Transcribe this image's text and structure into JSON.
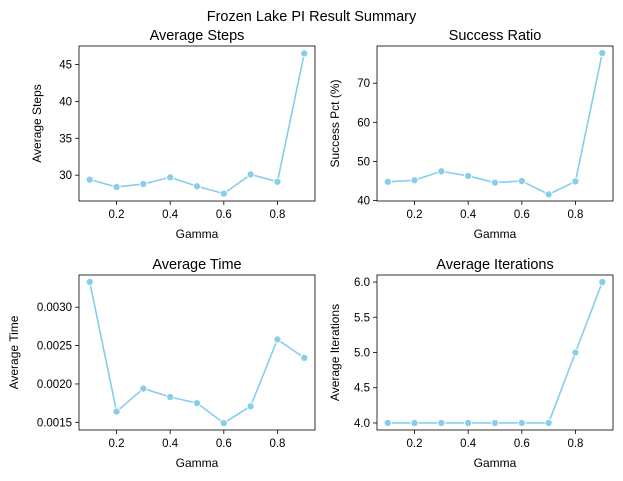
{
  "figure": {
    "suptitle": "Frozen Lake PI Result Summary"
  },
  "chart_data": [
    {
      "type": "line",
      "title": "Average Steps",
      "xlabel": "Gamma",
      "ylabel": "Average Steps",
      "x": [
        0.1,
        0.2,
        0.3,
        0.4,
        0.5,
        0.6,
        0.7,
        0.8,
        0.9
      ],
      "values": [
        29.4,
        28.4,
        28.8,
        29.7,
        28.5,
        27.5,
        30.1,
        29.1,
        46.5
      ],
      "xlim": [
        0.06,
        0.94
      ],
      "ylim": [
        26.5,
        47.5
      ],
      "xticks": [
        0.2,
        0.4,
        0.6,
        0.8
      ],
      "xtick_labels": [
        "0.2",
        "0.4",
        "0.6",
        "0.8"
      ],
      "yticks": [
        30,
        35,
        40,
        45
      ],
      "ytick_labels": [
        "30",
        "35",
        "40",
        "45"
      ],
      "color": "#87ceeb",
      "grid": false
    },
    {
      "type": "line",
      "title": "Success Ratio",
      "xlabel": "Gamma",
      "ylabel": "Success Pct (%)",
      "x": [
        0.1,
        0.2,
        0.3,
        0.4,
        0.5,
        0.6,
        0.7,
        0.8,
        0.9
      ],
      "values": [
        44.8,
        45.2,
        47.5,
        46.3,
        44.6,
        45.0,
        41.6,
        44.9,
        77.7
      ],
      "xlim": [
        0.06,
        0.94
      ],
      "ylim": [
        39.9,
        79.5
      ],
      "xticks": [
        0.2,
        0.4,
        0.6,
        0.8
      ],
      "xtick_labels": [
        "0.2",
        "0.4",
        "0.6",
        "0.8"
      ],
      "yticks": [
        40,
        50,
        60,
        70
      ],
      "ytick_labels": [
        "40",
        "50",
        "60",
        "70"
      ],
      "color": "#87ceeb",
      "grid": false
    },
    {
      "type": "line",
      "title": "Average Time",
      "xlabel": "Gamma",
      "ylabel": "Average Time",
      "x": [
        0.1,
        0.2,
        0.3,
        0.4,
        0.5,
        0.6,
        0.7,
        0.8,
        0.9
      ],
      "values": [
        0.00333,
        0.00164,
        0.00194,
        0.00183,
        0.00175,
        0.00149,
        0.00171,
        0.00258,
        0.00234
      ],
      "xlim": [
        0.06,
        0.94
      ],
      "ylim": [
        0.0014,
        0.00342
      ],
      "xticks": [
        0.2,
        0.4,
        0.6,
        0.8
      ],
      "xtick_labels": [
        "0.2",
        "0.4",
        "0.6",
        "0.8"
      ],
      "yticks": [
        0.0015,
        0.002,
        0.0025,
        0.003
      ],
      "ytick_labels": [
        "0.0015",
        "0.0020",
        "0.0025",
        "0.0030"
      ],
      "color": "#87ceeb",
      "grid": false
    },
    {
      "type": "line",
      "title": "Average Iterations",
      "xlabel": "Gamma",
      "ylabel": "Average Iterations",
      "x": [
        0.1,
        0.2,
        0.3,
        0.4,
        0.5,
        0.6,
        0.7,
        0.8,
        0.9
      ],
      "values": [
        4.0,
        4.0,
        4.0,
        4.0,
        4.0,
        4.0,
        4.0,
        5.0,
        6.0
      ],
      "xlim": [
        0.06,
        0.94
      ],
      "ylim": [
        3.9,
        6.1
      ],
      "xticks": [
        0.2,
        0.4,
        0.6,
        0.8
      ],
      "xtick_labels": [
        "0.2",
        "0.4",
        "0.6",
        "0.8"
      ],
      "yticks": [
        4.0,
        4.5,
        5.0,
        5.5,
        6.0
      ],
      "ytick_labels": [
        "4.0",
        "4.5",
        "5.0",
        "5.5",
        "6.0"
      ],
      "color": "#87ceeb",
      "grid": false
    }
  ]
}
